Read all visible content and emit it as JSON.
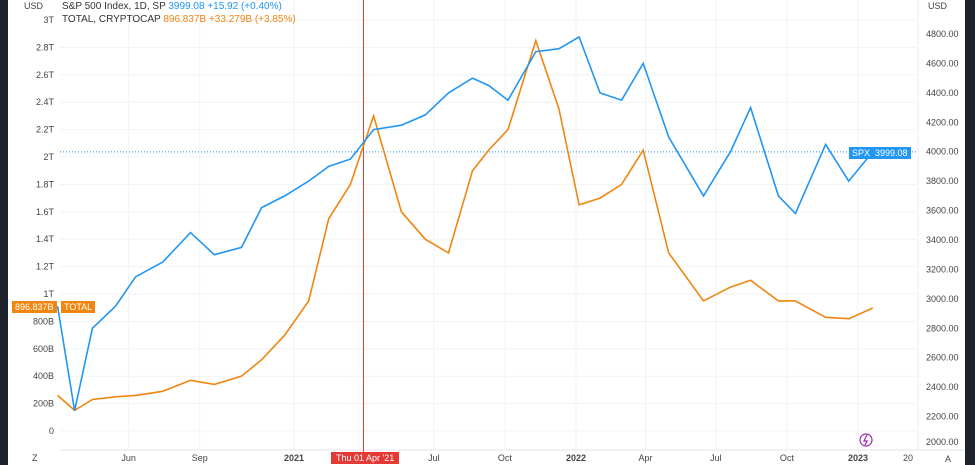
{
  "legend": {
    "spx": {
      "name": "S&P 500 Index, 1D, SP",
      "value": "3999.08",
      "change": "+15.92 (+0.40%)"
    },
    "total": {
      "name": "TOTAL, CRYPTOCAP",
      "value": "896.837B",
      "change": "+33.279B (+3.85%)"
    }
  },
  "axis_currency": "USD",
  "badges": {
    "spx_label": "SPX",
    "spx_value": "3999.08",
    "total_value": "896.837B",
    "total_label": "TOTAL",
    "crosshair_date": "Thu 01 Apr '21"
  },
  "bottom_controls": {
    "zoom_label": "Z",
    "auto_label": "A"
  },
  "colors": {
    "spx": "#2196f3",
    "total": "#f0850f",
    "crosshair": "#e53935"
  },
  "chart_data": {
    "type": "line",
    "title": "",
    "x_ticks": [
      {
        "label": "Jun",
        "date": "2020-06-01"
      },
      {
        "label": "Sep",
        "date": "2020-09-01"
      },
      {
        "label": "2021",
        "date": "2021-01-01"
      },
      {
        "label": "Jul",
        "date": "2021-07-01"
      },
      {
        "label": "Oct",
        "date": "2021-10-01"
      },
      {
        "label": "2022",
        "date": "2022-01-01"
      },
      {
        "label": "Apr",
        "date": "2022-04-01"
      },
      {
        "label": "Jul",
        "date": "2022-07-01"
      },
      {
        "label": "Oct",
        "date": "2022-10-01"
      },
      {
        "label": "2023",
        "date": "2023-01-01"
      },
      {
        "label": "20",
        "date": "2023-03-20"
      }
    ],
    "left_axis": {
      "ticks": [
        "0",
        "200B",
        "400B",
        "600B",
        "800B",
        "1T",
        "1.2T",
        "1.4T",
        "1.6T",
        "1.8T",
        "2T",
        "2.2T",
        "2.4T",
        "2.6T",
        "2.8T",
        "3T"
      ],
      "ylim_billions": [
        0,
        3000
      ]
    },
    "right_axis": {
      "ticks": [
        "2000.00",
        "2200.00",
        "2400.00",
        "2600.00",
        "2800.00",
        "3000.00",
        "3200.00",
        "3400.00",
        "3600.00",
        "3800.00",
        "4000.00",
        "4200.00",
        "4400.00",
        "4600.00",
        "4800.00"
      ],
      "ylim": [
        2000,
        4800
      ]
    },
    "x": [
      "2020-03-01",
      "2020-03-23",
      "2020-04-15",
      "2020-05-15",
      "2020-06-10",
      "2020-07-15",
      "2020-08-20",
      "2020-09-20",
      "2020-10-25",
      "2020-11-20",
      "2020-12-20",
      "2021-01-20",
      "2021-02-15",
      "2021-03-15",
      "2021-04-14",
      "2021-05-20",
      "2021-06-20",
      "2021-07-20",
      "2021-08-20",
      "2021-09-10",
      "2021-10-05",
      "2021-11-10",
      "2021-12-10",
      "2022-01-05",
      "2022-02-01",
      "2022-03-01",
      "2022-03-29",
      "2022-05-01",
      "2022-06-15",
      "2022-07-20",
      "2022-08-15",
      "2022-09-20",
      "2022-10-12",
      "2022-11-20",
      "2022-12-20",
      "2023-01-20"
    ],
    "series": [
      {
        "name": "SPX",
        "axis": "right",
        "values": [
          2950,
          2240,
          2800,
          2950,
          3150,
          3250,
          3450,
          3300,
          3350,
          3620,
          3700,
          3800,
          3900,
          3950,
          4150,
          4180,
          4250,
          4400,
          4500,
          4450,
          4350,
          4680,
          4700,
          4780,
          4400,
          4350,
          4600,
          4100,
          3700,
          4000,
          4300,
          3700,
          3580,
          4050,
          3800,
          3999
        ]
      },
      {
        "name": "TOTAL",
        "axis": "left",
        "values": [
          260,
          150,
          230,
          250,
          260,
          290,
          370,
          340,
          400,
          520,
          700,
          950,
          1550,
          1800,
          2300,
          1600,
          1400,
          1300,
          1900,
          2050,
          2200,
          2850,
          2350,
          1650,
          1700,
          1800,
          2050,
          1300,
          950,
          1050,
          1100,
          950,
          950,
          830,
          820,
          897
        ]
      }
    ]
  }
}
